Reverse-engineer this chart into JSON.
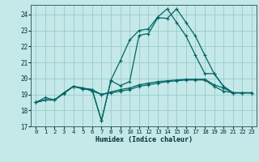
{
  "xlabel": "Humidex (Indice chaleur)",
  "bg_color": "#c5e8e8",
  "grid_color": "#99cccc",
  "line_color": "#006666",
  "xlim": [
    -0.5,
    23.5
  ],
  "ylim": [
    17,
    24.6
  ],
  "yticks": [
    17,
    18,
    19,
    20,
    21,
    22,
    23,
    24
  ],
  "xticks": [
    0,
    1,
    2,
    3,
    4,
    5,
    6,
    7,
    8,
    9,
    10,
    11,
    12,
    13,
    14,
    15,
    16,
    17,
    18,
    19,
    20,
    21,
    22,
    23
  ],
  "line1_x": [
    0,
    1,
    2,
    3,
    4,
    5,
    6,
    7,
    8,
    9,
    10,
    11,
    12,
    13,
    14,
    15,
    16,
    17,
    18,
    19,
    20,
    21,
    22,
    23
  ],
  "line1_y": [
    18.5,
    18.8,
    18.65,
    19.1,
    19.5,
    19.4,
    19.2,
    19.0,
    19.1,
    19.2,
    19.3,
    19.5,
    19.6,
    19.7,
    19.8,
    19.85,
    19.9,
    19.9,
    19.9,
    19.5,
    19.2,
    19.1,
    19.1,
    19.1
  ],
  "line2_x": [
    0,
    1,
    2,
    3,
    4,
    5,
    6,
    7,
    8,
    9,
    10,
    11,
    12,
    13,
    14,
    15,
    16,
    17,
    18,
    19,
    20,
    21,
    22,
    23
  ],
  "line2_y": [
    18.5,
    18.65,
    18.65,
    19.05,
    19.5,
    19.35,
    19.3,
    19.0,
    19.15,
    19.3,
    19.4,
    19.6,
    19.7,
    19.8,
    19.85,
    19.9,
    19.95,
    19.95,
    19.95,
    19.6,
    19.4,
    19.1,
    19.1,
    19.1
  ],
  "line3_x": [
    0,
    1,
    2,
    3,
    4,
    5,
    6,
    7,
    8,
    9,
    10,
    11,
    12,
    13,
    14,
    15,
    16,
    17,
    18,
    19,
    20,
    21,
    22,
    23
  ],
  "line3_y": [
    18.5,
    18.65,
    18.65,
    19.1,
    19.5,
    19.4,
    19.3,
    17.35,
    19.85,
    19.55,
    19.8,
    22.7,
    22.8,
    23.8,
    23.75,
    24.35,
    23.5,
    22.65,
    21.45,
    20.3,
    19.5,
    19.1,
    19.1,
    19.1
  ],
  "line4_x": [
    0,
    1,
    2,
    3,
    4,
    5,
    6,
    7,
    8,
    9,
    10,
    11,
    12,
    13,
    14,
    15,
    16,
    17,
    18,
    19,
    20,
    21,
    22,
    23
  ],
  "line4_y": [
    18.5,
    18.65,
    18.65,
    19.1,
    19.5,
    19.35,
    19.3,
    17.35,
    19.9,
    21.1,
    22.4,
    23.0,
    23.1,
    23.85,
    24.35,
    23.5,
    22.65,
    21.45,
    20.3,
    20.3,
    19.5,
    19.1,
    19.1,
    19.1
  ]
}
